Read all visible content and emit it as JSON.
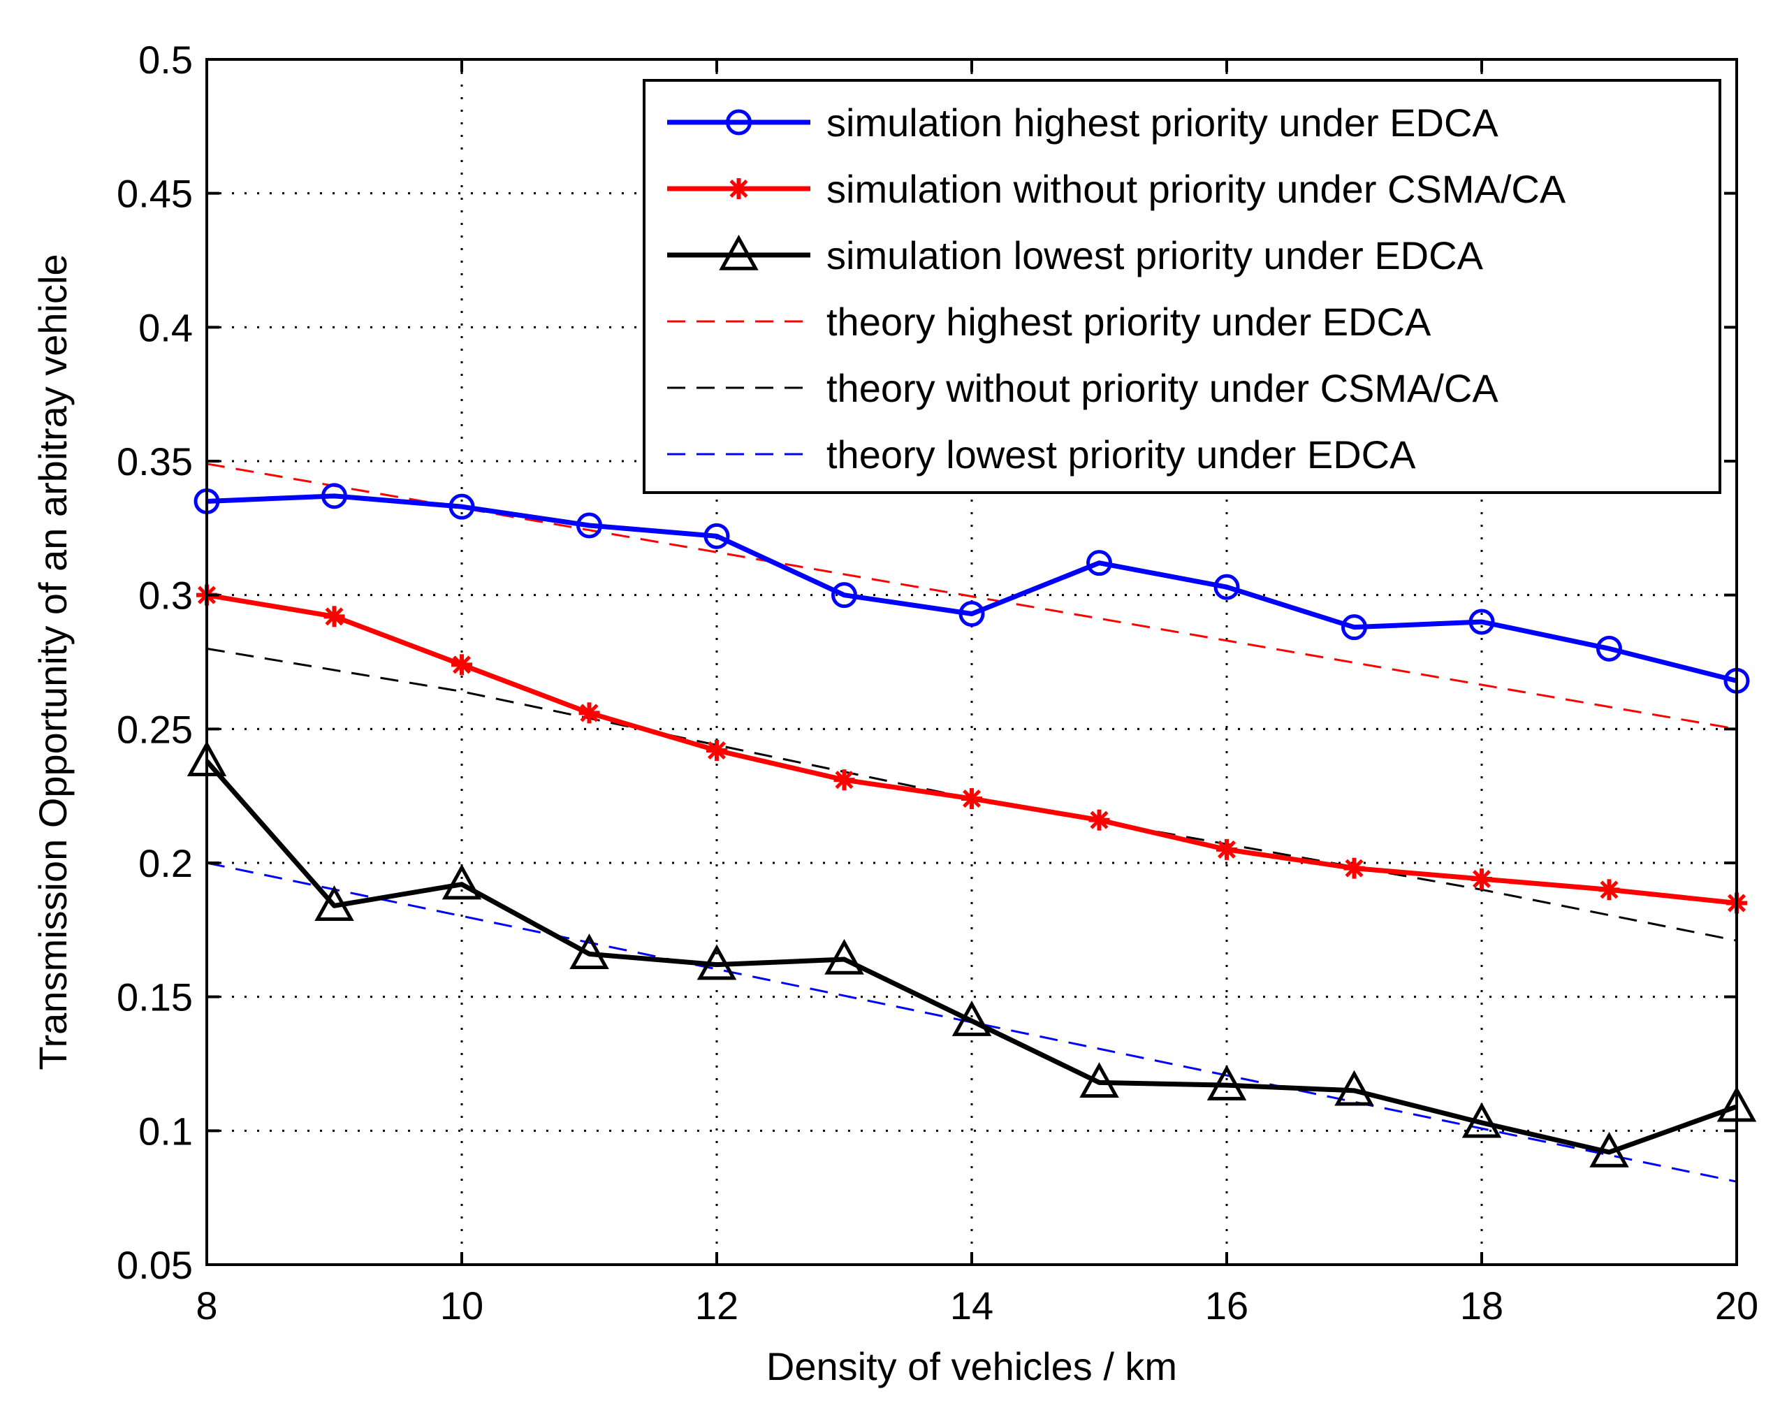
{
  "chart_data": {
    "type": "line",
    "title": "",
    "xlabel": "Density of vehicles / km",
    "ylabel": "Transmission Opportunity of an arbitray vehicle",
    "xlim": [
      8,
      20
    ],
    "ylim": [
      0.05,
      0.5
    ],
    "xticks": [
      8,
      10,
      12,
      14,
      16,
      18,
      20
    ],
    "xtick_labels": [
      "8",
      "10",
      "12",
      "14",
      "16",
      "18",
      "20"
    ],
    "yticks": [
      0.05,
      0.1,
      0.15,
      0.2,
      0.25,
      0.3,
      0.35,
      0.4,
      0.45,
      0.5
    ],
    "ytick_labels": [
      "0.05",
      "0.1",
      "0.15",
      "0.2",
      "0.25",
      "0.3",
      "0.35",
      "0.4",
      "0.45",
      "0.5"
    ],
    "grid": true,
    "legend_position": "top-right",
    "series": [
      {
        "name": "simulation highest priority under EDCA",
        "color": "#0000ff",
        "style": "solid",
        "marker": "circle",
        "x": [
          8,
          9,
          10,
          11,
          12,
          13,
          14,
          15,
          16,
          17,
          18,
          19,
          20
        ],
        "y": [
          0.335,
          0.337,
          0.333,
          0.326,
          0.322,
          0.3,
          0.293,
          0.312,
          0.303,
          0.288,
          0.29,
          0.28,
          0.268
        ]
      },
      {
        "name": "simulation without priority under CSMA/CA",
        "color": "#ff0000",
        "style": "solid",
        "marker": "star",
        "x": [
          8,
          9,
          10,
          11,
          12,
          13,
          14,
          15,
          16,
          17,
          18,
          19,
          20
        ],
        "y": [
          0.3,
          0.292,
          0.274,
          0.256,
          0.242,
          0.231,
          0.224,
          0.216,
          0.205,
          0.198,
          0.194,
          0.19,
          0.185
        ]
      },
      {
        "name": "simulation lowest priority under EDCA",
        "color": "#000000",
        "style": "solid",
        "marker": "triangle",
        "x": [
          8,
          9,
          10,
          11,
          12,
          13,
          14,
          15,
          16,
          17,
          18,
          19,
          20
        ],
        "y": [
          0.238,
          0.184,
          0.192,
          0.166,
          0.162,
          0.164,
          0.141,
          0.118,
          0.117,
          0.115,
          0.103,
          0.092,
          0.109
        ]
      },
      {
        "name": "theory highest priority under EDCA",
        "color": "#ff0000",
        "style": "dashed",
        "marker": "none",
        "x": [
          8,
          20
        ],
        "y": [
          0.349,
          0.25
        ]
      },
      {
        "name": "theory without priority under CSMA/CA",
        "color": "#000000",
        "style": "dashed",
        "marker": "none",
        "x": [
          8,
          10,
          12,
          14,
          16,
          18,
          20
        ],
        "y": [
          0.28,
          0.264,
          0.244,
          0.224,
          0.207,
          0.19,
          0.171
        ]
      },
      {
        "name": "theory lowest priority under EDCA",
        "color": "#0000ff",
        "style": "dashed",
        "marker": "none",
        "x": [
          8,
          20
        ],
        "y": [
          0.2,
          0.081
        ]
      }
    ]
  }
}
